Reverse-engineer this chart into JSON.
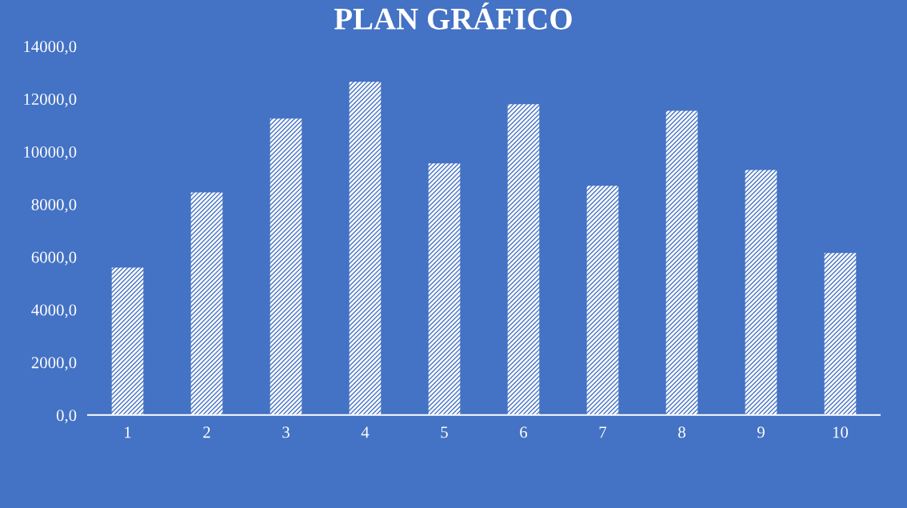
{
  "chart_data": {
    "type": "bar",
    "title": "PLAN GRÁFICO",
    "categories": [
      "1",
      "2",
      "3",
      "4",
      "5",
      "6",
      "7",
      "8",
      "9",
      "10"
    ],
    "values": [
      5600,
      8450,
      11250,
      12650,
      9550,
      11800,
      8700,
      11550,
      9300,
      6150
    ],
    "color": "#ffffff",
    "ylim": [
      0,
      14000
    ],
    "yticks": [
      {
        "value": 0,
        "label": "0,0"
      },
      {
        "value": 2000,
        "label": "2000,0"
      },
      {
        "value": 4000,
        "label": "4000,0"
      },
      {
        "value": 6000,
        "label": "6000,0"
      },
      {
        "value": 8000,
        "label": "8000,0"
      },
      {
        "value": 10000,
        "label": "10000,0"
      },
      {
        "value": 12000,
        "label": "12000,0"
      },
      {
        "value": 14000,
        "label": "14000,0"
      }
    ],
    "grid": false,
    "legend": false
  }
}
